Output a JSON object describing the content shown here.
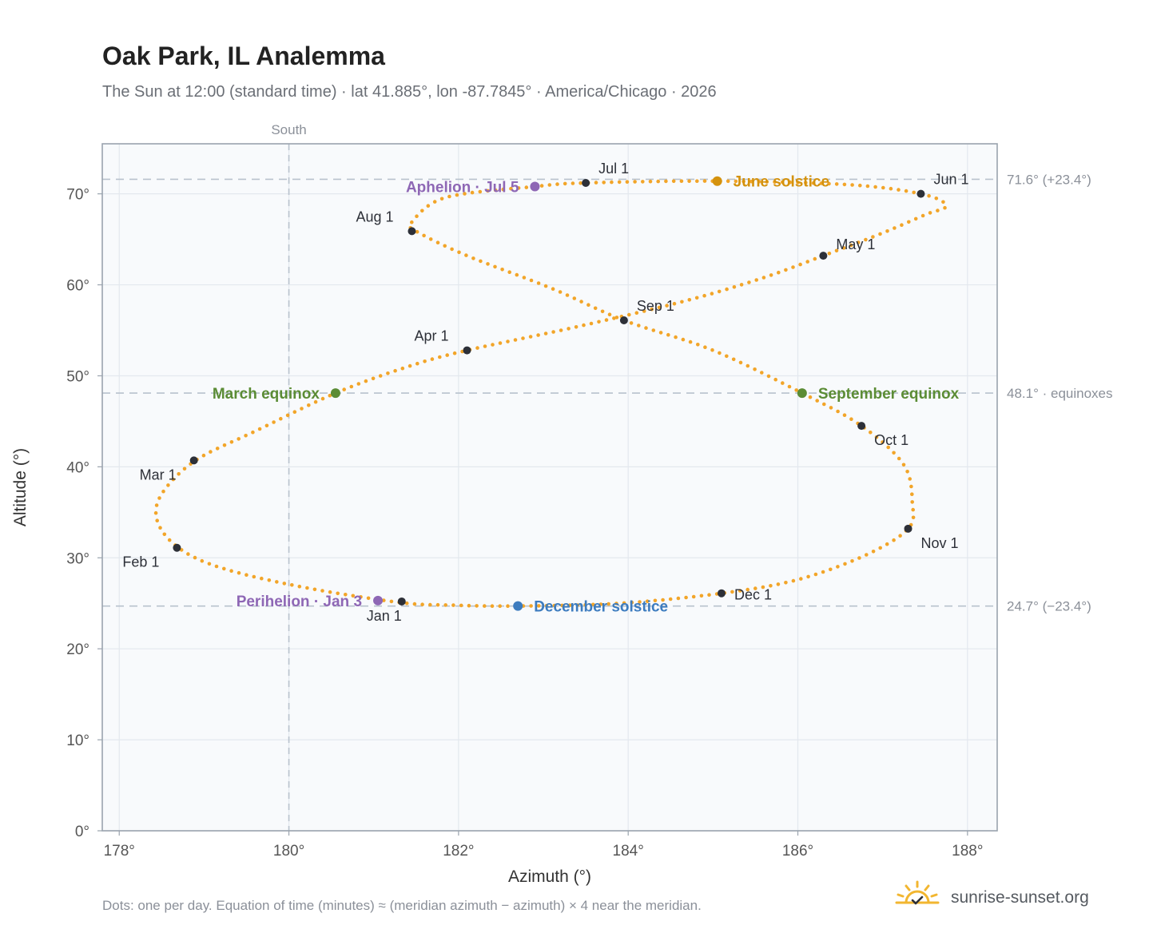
{
  "title": "Oak Park, IL Analemma",
  "subtitle": "The Sun at 12:00 (standard time) · lat 41.885°, lon -87.7845° · America/Chicago · 2026",
  "footnote": "Dots: one per day. Equation of time (minutes) ≈ (meridian azimuth − azimuth) × 4 near the meridian.",
  "brand": {
    "name": "sunrise-sunset.org",
    "logo_icon": "sun-checkmark-icon"
  },
  "colors": {
    "path": "#f2a529",
    "month_marker": "#2d3038",
    "equinox": "#5b8c35",
    "june_solstice": "#d4920e",
    "december_solstice": "#3d7cbf",
    "apsis": "#8e67b5",
    "reference_line": "#b8c2cd",
    "plot_bg": "#f8fafc",
    "grid": "#e3e8ee",
    "frame": "#9aa3ae"
  },
  "chart_data": {
    "type": "scatter",
    "xlabel": "Azimuth (°)",
    "ylabel": "Altitude (°)",
    "xlim": [
      177.8,
      188.35
    ],
    "ylim": [
      0,
      75.5
    ],
    "x_ticks": [
      178,
      180,
      182,
      184,
      186,
      188
    ],
    "x_tick_labels": [
      "178°",
      "180°",
      "182°",
      "184°",
      "186°",
      "188°"
    ],
    "y_ticks": [
      0,
      10,
      20,
      30,
      40,
      50,
      60,
      70
    ],
    "y_tick_labels": [
      "0°",
      "10°",
      "20°",
      "30°",
      "40°",
      "50°",
      "60°",
      "70°"
    ],
    "grid": true,
    "vertical_reference": {
      "x": 180,
      "label": "South"
    },
    "horizontal_references": [
      {
        "y": 71.6,
        "label": "71.6° (+23.4°)"
      },
      {
        "y": 48.1,
        "label": "48.1° · equinoxes"
      },
      {
        "y": 24.7,
        "label": "24.7° (−23.4°)"
      }
    ],
    "analemma_path": [
      [
        181.3,
        25.1
      ],
      [
        180.15,
        26.8
      ],
      [
        179.2,
        28.9
      ],
      [
        178.7,
        31.1
      ],
      [
        178.45,
        34.0
      ],
      [
        178.5,
        37.0
      ],
      [
        178.9,
        40.7
      ],
      [
        179.6,
        43.9
      ],
      [
        180.55,
        48.1
      ],
      [
        181.4,
        51.0
      ],
      [
        182.1,
        52.8
      ],
      [
        183.4,
        55.4
      ],
      [
        184.7,
        58.3
      ],
      [
        185.6,
        60.8
      ],
      [
        186.3,
        63.2
      ],
      [
        187.0,
        65.7
      ],
      [
        187.5,
        67.7
      ],
      [
        187.75,
        68.7
      ],
      [
        187.45,
        70.0
      ],
      [
        186.6,
        71.0
      ],
      [
        185.05,
        71.4
      ],
      [
        183.5,
        71.2
      ],
      [
        182.9,
        70.8
      ],
      [
        181.85,
        69.6
      ],
      [
        181.45,
        66.9
      ],
      [
        181.5,
        65.9
      ],
      [
        182.1,
        63.2
      ],
      [
        183.1,
        59.6
      ],
      [
        183.95,
        56.1
      ],
      [
        185.0,
        52.8
      ],
      [
        186.05,
        48.1
      ],
      [
        186.75,
        44.5
      ],
      [
        187.25,
        40.2
      ],
      [
        187.35,
        36.0
      ],
      [
        187.3,
        33.2
      ],
      [
        186.8,
        30.3
      ],
      [
        186.0,
        27.6
      ],
      [
        185.1,
        26.1
      ],
      [
        183.9,
        25.0
      ],
      [
        182.7,
        24.7
      ],
      [
        181.9,
        24.8
      ],
      [
        181.3,
        25.1
      ]
    ],
    "month_markers": [
      {
        "label": "Jan 1",
        "x": 181.33,
        "y": 25.2
      },
      {
        "label": "Feb 1",
        "x": 178.68,
        "y": 31.1
      },
      {
        "label": "Mar 1",
        "x": 178.88,
        "y": 40.7
      },
      {
        "label": "Apr 1",
        "x": 182.1,
        "y": 52.8
      },
      {
        "label": "May 1",
        "x": 186.3,
        "y": 63.2
      },
      {
        "label": "Jun 1",
        "x": 187.45,
        "y": 70.0
      },
      {
        "label": "Jul 1",
        "x": 183.5,
        "y": 71.2
      },
      {
        "label": "Aug 1",
        "x": 181.45,
        "y": 65.9
      },
      {
        "label": "Sep 1",
        "x": 183.95,
        "y": 56.1
      },
      {
        "label": "Oct 1",
        "x": 186.75,
        "y": 44.5
      },
      {
        "label": "Nov 1",
        "x": 187.3,
        "y": 33.2
      },
      {
        "label": "Dec 1",
        "x": 185.1,
        "y": 26.1
      }
    ],
    "events": [
      {
        "label": "March equinox",
        "x": 180.55,
        "y": 48.1,
        "color": "#5b8c35"
      },
      {
        "label": "September equinox",
        "x": 186.05,
        "y": 48.1,
        "color": "#5b8c35"
      },
      {
        "label": "June solstice",
        "x": 185.05,
        "y": 71.4,
        "color": "#d4920e"
      },
      {
        "label": "December solstice",
        "x": 182.7,
        "y": 24.7,
        "color": "#3d7cbf"
      },
      {
        "label": "Perihelion · Jan 3",
        "x": 181.05,
        "y": 25.3,
        "color": "#8e67b5"
      },
      {
        "label": "Aphelion · Jul 5",
        "x": 182.9,
        "y": 70.8,
        "color": "#8e67b5"
      }
    ]
  }
}
